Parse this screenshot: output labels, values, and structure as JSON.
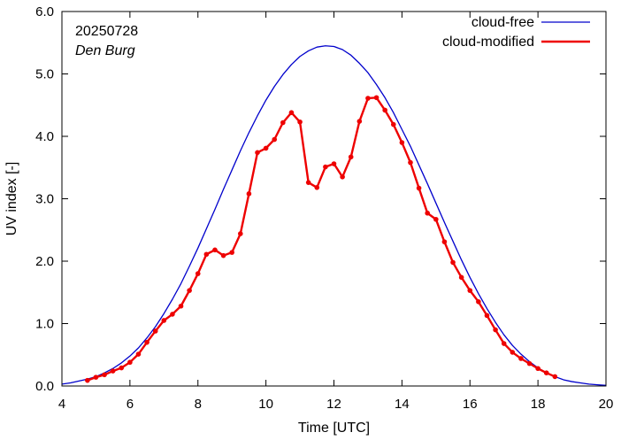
{
  "chart_data": {
    "type": "line",
    "title": "",
    "xlabel": "Time  [UTC]",
    "ylabel": "UV index  [-]",
    "xlim": [
      4,
      20
    ],
    "ylim": [
      0,
      6
    ],
    "xticks": [
      4,
      6,
      8,
      10,
      12,
      14,
      16,
      18,
      20
    ],
    "xtick_labels": [
      "4",
      "6",
      "8",
      "10",
      "12",
      "14",
      "16",
      "18",
      "20"
    ],
    "yticks": [
      0,
      1,
      2,
      3,
      4,
      5,
      6
    ],
    "ytick_labels": [
      "0.0",
      "1.0",
      "2.0",
      "3.0",
      "4.0",
      "5.0",
      "6.0"
    ],
    "grid": false,
    "legend_position": "top-right",
    "annotations": {
      "date": "20250728",
      "location": "Den Burg"
    },
    "series": [
      {
        "name": "cloud-free",
        "color": "#0000cc",
        "markers": false,
        "x": [
          4.0,
          4.25,
          4.5,
          4.75,
          5.0,
          5.25,
          5.5,
          5.75,
          6.0,
          6.25,
          6.5,
          6.75,
          7.0,
          7.25,
          7.5,
          7.75,
          8.0,
          8.25,
          8.5,
          8.75,
          9.0,
          9.25,
          9.5,
          9.75,
          10.0,
          10.25,
          10.5,
          10.75,
          11.0,
          11.25,
          11.5,
          11.75,
          12.0,
          12.25,
          12.5,
          12.75,
          13.0,
          13.25,
          13.5,
          13.75,
          14.0,
          14.25,
          14.5,
          14.75,
          15.0,
          15.25,
          15.5,
          15.75,
          16.0,
          16.25,
          16.5,
          16.75,
          17.0,
          17.25,
          17.5,
          17.75,
          18.0,
          18.25,
          18.5,
          18.75,
          19.0,
          19.25,
          19.5,
          19.75,
          20.0
        ],
        "y": [
          0.03,
          0.05,
          0.08,
          0.11,
          0.15,
          0.21,
          0.28,
          0.37,
          0.48,
          0.61,
          0.77,
          0.95,
          1.16,
          1.39,
          1.64,
          1.92,
          2.21,
          2.52,
          2.83,
          3.15,
          3.46,
          3.77,
          4.06,
          4.33,
          4.58,
          4.8,
          4.99,
          5.15,
          5.28,
          5.37,
          5.43,
          5.45,
          5.44,
          5.39,
          5.3,
          5.17,
          5.02,
          4.83,
          4.62,
          4.38,
          4.11,
          3.84,
          3.54,
          3.24,
          2.93,
          2.62,
          2.32,
          2.02,
          1.74,
          1.48,
          1.24,
          1.02,
          0.82,
          0.65,
          0.51,
          0.39,
          0.29,
          0.21,
          0.15,
          0.1,
          0.07,
          0.05,
          0.03,
          0.02,
          0.01
        ]
      },
      {
        "name": "cloud-modified",
        "color": "#ee0000",
        "markers": true,
        "x": [
          4.75,
          5.0,
          5.25,
          5.5,
          5.75,
          6.0,
          6.25,
          6.5,
          6.75,
          7.0,
          7.25,
          7.5,
          7.75,
          8.0,
          8.25,
          8.5,
          8.75,
          9.0,
          9.25,
          9.5,
          9.75,
          10.0,
          10.25,
          10.5,
          10.75,
          11.0,
          11.25,
          11.5,
          11.75,
          12.0,
          12.25,
          12.5,
          12.75,
          13.0,
          13.25,
          13.5,
          13.75,
          14.0,
          14.25,
          14.5,
          14.75,
          15.0,
          15.25,
          15.5,
          15.75,
          16.0,
          16.25,
          16.5,
          16.75,
          17.0,
          17.25,
          17.5,
          17.75,
          18.0,
          18.25,
          18.5
        ],
        "y": [
          0.09,
          0.14,
          0.18,
          0.24,
          0.29,
          0.38,
          0.51,
          0.7,
          0.88,
          1.05,
          1.15,
          1.28,
          1.53,
          1.8,
          2.11,
          2.18,
          2.09,
          2.14,
          2.44,
          3.08,
          3.74,
          3.81,
          3.95,
          4.22,
          4.38,
          4.23,
          3.26,
          3.18,
          3.51,
          3.56,
          3.35,
          3.67,
          4.24,
          4.61,
          4.62,
          4.42,
          4.19,
          3.9,
          3.58,
          3.17,
          2.77,
          2.67,
          2.31,
          1.98,
          1.74,
          1.53,
          1.35,
          1.13,
          0.9,
          0.68,
          0.54,
          0.44,
          0.36,
          0.28,
          0.21,
          0.15
        ]
      }
    ]
  }
}
